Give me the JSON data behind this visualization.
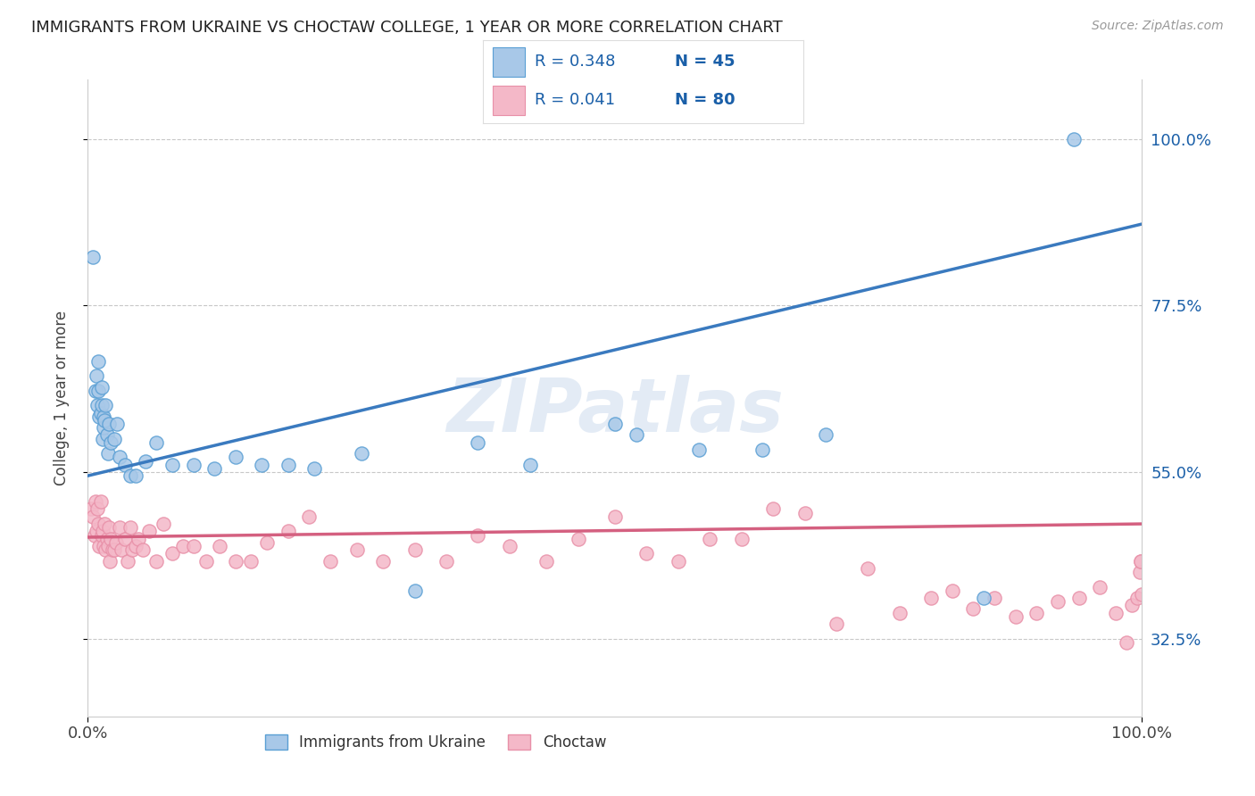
{
  "title": "IMMIGRANTS FROM UKRAINE VS CHOCTAW COLLEGE, 1 YEAR OR MORE CORRELATION CHART",
  "source": "Source: ZipAtlas.com",
  "ylabel": "College, 1 year or more",
  "watermark": "ZIPatlas",
  "legend_r_ukraine": "R = 0.348",
  "legend_n_ukraine": "N = 45",
  "legend_r_choctaw": "R = 0.041",
  "legend_n_choctaw": "N = 80",
  "legend_label_ukraine": "Immigrants from Ukraine",
  "legend_label_choctaw": "Choctaw",
  "ukraine_color": "#a8c8e8",
  "ukraine_edge_color": "#5a9fd4",
  "choctaw_color": "#f4b8c8",
  "choctaw_edge_color": "#e890a8",
  "line_ukraine_color": "#3a7abf",
  "line_choctaw_color": "#d46080",
  "text_color": "#1a5fa8",
  "background_color": "#ffffff",
  "grid_color": "#c8c8c8",
  "ukraine_x": [
    0.005,
    0.007,
    0.008,
    0.009,
    0.01,
    0.01,
    0.011,
    0.012,
    0.013,
    0.013,
    0.014,
    0.015,
    0.015,
    0.016,
    0.017,
    0.018,
    0.019,
    0.02,
    0.022,
    0.025,
    0.028,
    0.03,
    0.035,
    0.04,
    0.045,
    0.055,
    0.065,
    0.08,
    0.1,
    0.12,
    0.14,
    0.165,
    0.19,
    0.215,
    0.26,
    0.31,
    0.37,
    0.42,
    0.5,
    0.52,
    0.58,
    0.64,
    0.7,
    0.85,
    0.935
  ],
  "ukraine_y": [
    0.84,
    0.66,
    0.68,
    0.64,
    0.66,
    0.7,
    0.625,
    0.63,
    0.64,
    0.665,
    0.595,
    0.625,
    0.61,
    0.62,
    0.64,
    0.6,
    0.575,
    0.615,
    0.59,
    0.595,
    0.615,
    0.57,
    0.56,
    0.545,
    0.545,
    0.565,
    0.59,
    0.56,
    0.56,
    0.555,
    0.57,
    0.56,
    0.56,
    0.555,
    0.575,
    0.39,
    0.59,
    0.56,
    0.615,
    0.6,
    0.58,
    0.58,
    0.6,
    0.38,
    1.0
  ],
  "choctaw_x": [
    0.003,
    0.005,
    0.006,
    0.007,
    0.008,
    0.009,
    0.01,
    0.011,
    0.012,
    0.013,
    0.014,
    0.015,
    0.016,
    0.017,
    0.018,
    0.019,
    0.02,
    0.021,
    0.022,
    0.023,
    0.025,
    0.027,
    0.03,
    0.032,
    0.035,
    0.038,
    0.04,
    0.042,
    0.045,
    0.048,
    0.052,
    0.058,
    0.065,
    0.072,
    0.08,
    0.09,
    0.1,
    0.112,
    0.125,
    0.14,
    0.155,
    0.17,
    0.19,
    0.21,
    0.23,
    0.255,
    0.28,
    0.31,
    0.34,
    0.37,
    0.4,
    0.435,
    0.465,
    0.5,
    0.53,
    0.56,
    0.59,
    0.62,
    0.65,
    0.68,
    0.71,
    0.74,
    0.77,
    0.8,
    0.82,
    0.84,
    0.86,
    0.88,
    0.9,
    0.92,
    0.94,
    0.96,
    0.975,
    0.985,
    0.99,
    0.995,
    0.998,
    0.999,
    0.999,
    1.0
  ],
  "choctaw_y": [
    0.5,
    0.49,
    0.465,
    0.51,
    0.47,
    0.5,
    0.48,
    0.45,
    0.51,
    0.465,
    0.47,
    0.45,
    0.48,
    0.445,
    0.46,
    0.45,
    0.475,
    0.43,
    0.46,
    0.445,
    0.445,
    0.455,
    0.475,
    0.445,
    0.46,
    0.43,
    0.475,
    0.445,
    0.45,
    0.46,
    0.445,
    0.47,
    0.43,
    0.48,
    0.44,
    0.45,
    0.45,
    0.43,
    0.45,
    0.43,
    0.43,
    0.455,
    0.47,
    0.49,
    0.43,
    0.445,
    0.43,
    0.445,
    0.43,
    0.465,
    0.45,
    0.43,
    0.46,
    0.49,
    0.44,
    0.43,
    0.46,
    0.46,
    0.5,
    0.495,
    0.345,
    0.42,
    0.36,
    0.38,
    0.39,
    0.365,
    0.38,
    0.355,
    0.36,
    0.375,
    0.38,
    0.395,
    0.36,
    0.32,
    0.37,
    0.38,
    0.415,
    0.43,
    0.43,
    0.385
  ],
  "xlim": [
    0.0,
    1.0
  ],
  "ylim": [
    0.22,
    1.08
  ],
  "yticks": [
    0.325,
    0.55,
    0.775,
    1.0
  ],
  "ytick_labels": [
    "32.5%",
    "55.0%",
    "77.5%",
    "100.0%"
  ],
  "xticks": [
    0.0,
    1.0
  ],
  "xtick_labels": [
    "0.0%",
    "100.0%"
  ],
  "figsize": [
    14.06,
    8.92
  ],
  "dpi": 100
}
